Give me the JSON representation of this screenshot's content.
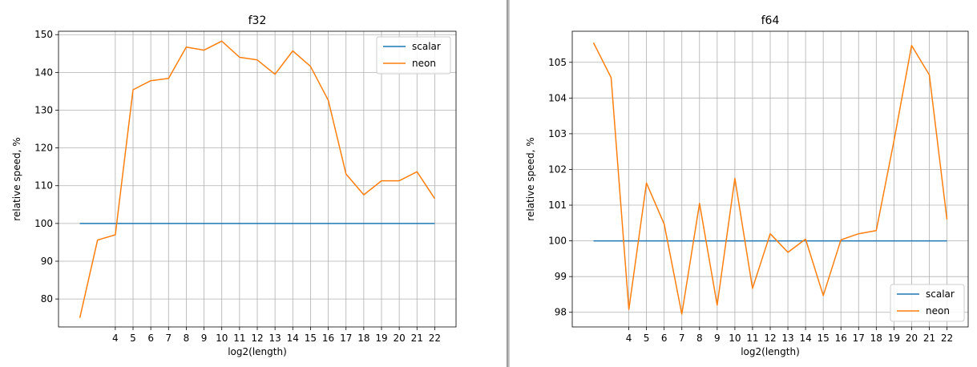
{
  "chart_data": [
    {
      "type": "line",
      "title": "f32",
      "xlabel": "log2(length)",
      "ylabel": "relative speed, %",
      "xlim": [
        0.8,
        23.2
      ],
      "ylim": [
        72.6,
        150.9
      ],
      "xticks": [
        4,
        5,
        6,
        7,
        8,
        9,
        10,
        11,
        12,
        13,
        14,
        15,
        16,
        17,
        18,
        19,
        20,
        21,
        22
      ],
      "yticks": [
        80,
        90,
        100,
        110,
        120,
        130,
        140,
        150
      ],
      "grid": true,
      "legend_position": "top-right",
      "x": [
        2,
        3,
        4,
        5,
        6,
        7,
        8,
        9,
        10,
        11,
        12,
        13,
        14,
        15,
        16,
        17,
        18,
        19,
        20,
        21,
        22
      ],
      "series": [
        {
          "name": "scalar",
          "color": "#1f77b4",
          "values": [
            100,
            100,
            100,
            100,
            100,
            100,
            100,
            100,
            100,
            100,
            100,
            100,
            100,
            100,
            100,
            100,
            100,
            100,
            100,
            100,
            100
          ]
        },
        {
          "name": "neon",
          "color": "#ff7f0e",
          "values": [
            75.0,
            95.6,
            97.0,
            135.4,
            137.8,
            138.4,
            146.7,
            145.9,
            148.3,
            144.0,
            143.3,
            139.5,
            145.7,
            141.6,
            132.6,
            113.1,
            107.6,
            111.3,
            111.3,
            113.7,
            106.6
          ]
        }
      ]
    },
    {
      "type": "line",
      "title": "f64",
      "xlabel": "log2(length)",
      "ylabel": "relative speed, %",
      "xlim": [
        0.8,
        23.2
      ],
      "ylim": [
        97.59,
        105.87
      ],
      "xticks": [
        4,
        5,
        6,
        7,
        8,
        9,
        10,
        11,
        12,
        13,
        14,
        15,
        16,
        17,
        18,
        19,
        20,
        21,
        22
      ],
      "yticks": [
        98,
        99,
        100,
        101,
        102,
        103,
        104,
        105
      ],
      "grid": true,
      "legend_position": "bottom-right",
      "x": [
        2,
        3,
        4,
        5,
        6,
        7,
        8,
        9,
        10,
        11,
        12,
        13,
        14,
        15,
        16,
        17,
        18,
        19,
        20,
        21,
        22
      ],
      "series": [
        {
          "name": "scalar",
          "color": "#1f77b4",
          "values": [
            100,
            100,
            100,
            100,
            100,
            100,
            100,
            100,
            100,
            100,
            100,
            100,
            100,
            100,
            100,
            100,
            100,
            100,
            100,
            100,
            100
          ]
        },
        {
          "name": "neon",
          "color": "#ff7f0e",
          "values": [
            105.55,
            104.57,
            98.08,
            101.62,
            100.47,
            97.95,
            101.05,
            98.2,
            101.75,
            98.67,
            100.2,
            99.68,
            100.05,
            98.47,
            100.03,
            100.2,
            100.29,
            102.8,
            105.47,
            104.65,
            100.6
          ]
        }
      ]
    }
  ]
}
